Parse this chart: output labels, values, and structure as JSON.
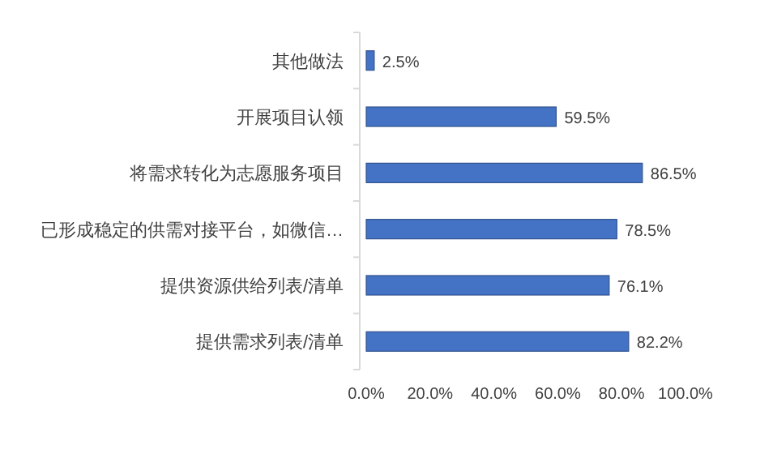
{
  "chart_data": {
    "type": "bar",
    "orientation": "horizontal",
    "categories": [
      "其他做法",
      "开展项目认领",
      "将需求转化为志愿服务项目",
      "已形成稳定的供需对接平台，如微信…",
      "提供资源供给列表/清单",
      "提供需求列表/清单"
    ],
    "values": [
      2.5,
      59.5,
      86.5,
      78.5,
      76.1,
      82.2
    ],
    "value_labels": [
      "2.5%",
      "59.5%",
      "86.5%",
      "78.5%",
      "76.1%",
      "82.2%"
    ],
    "color": "#4472c4",
    "xlim": [
      0,
      100
    ],
    "xticks": [
      {
        "value": 0,
        "label": "0.0%"
      },
      {
        "value": 20,
        "label": "20.0%"
      },
      {
        "value": 40,
        "label": "40.0%"
      },
      {
        "value": 60,
        "label": "60.0%"
      },
      {
        "value": 80,
        "label": "80.0%"
      },
      {
        "value": 100,
        "label": "100.0%"
      }
    ]
  }
}
